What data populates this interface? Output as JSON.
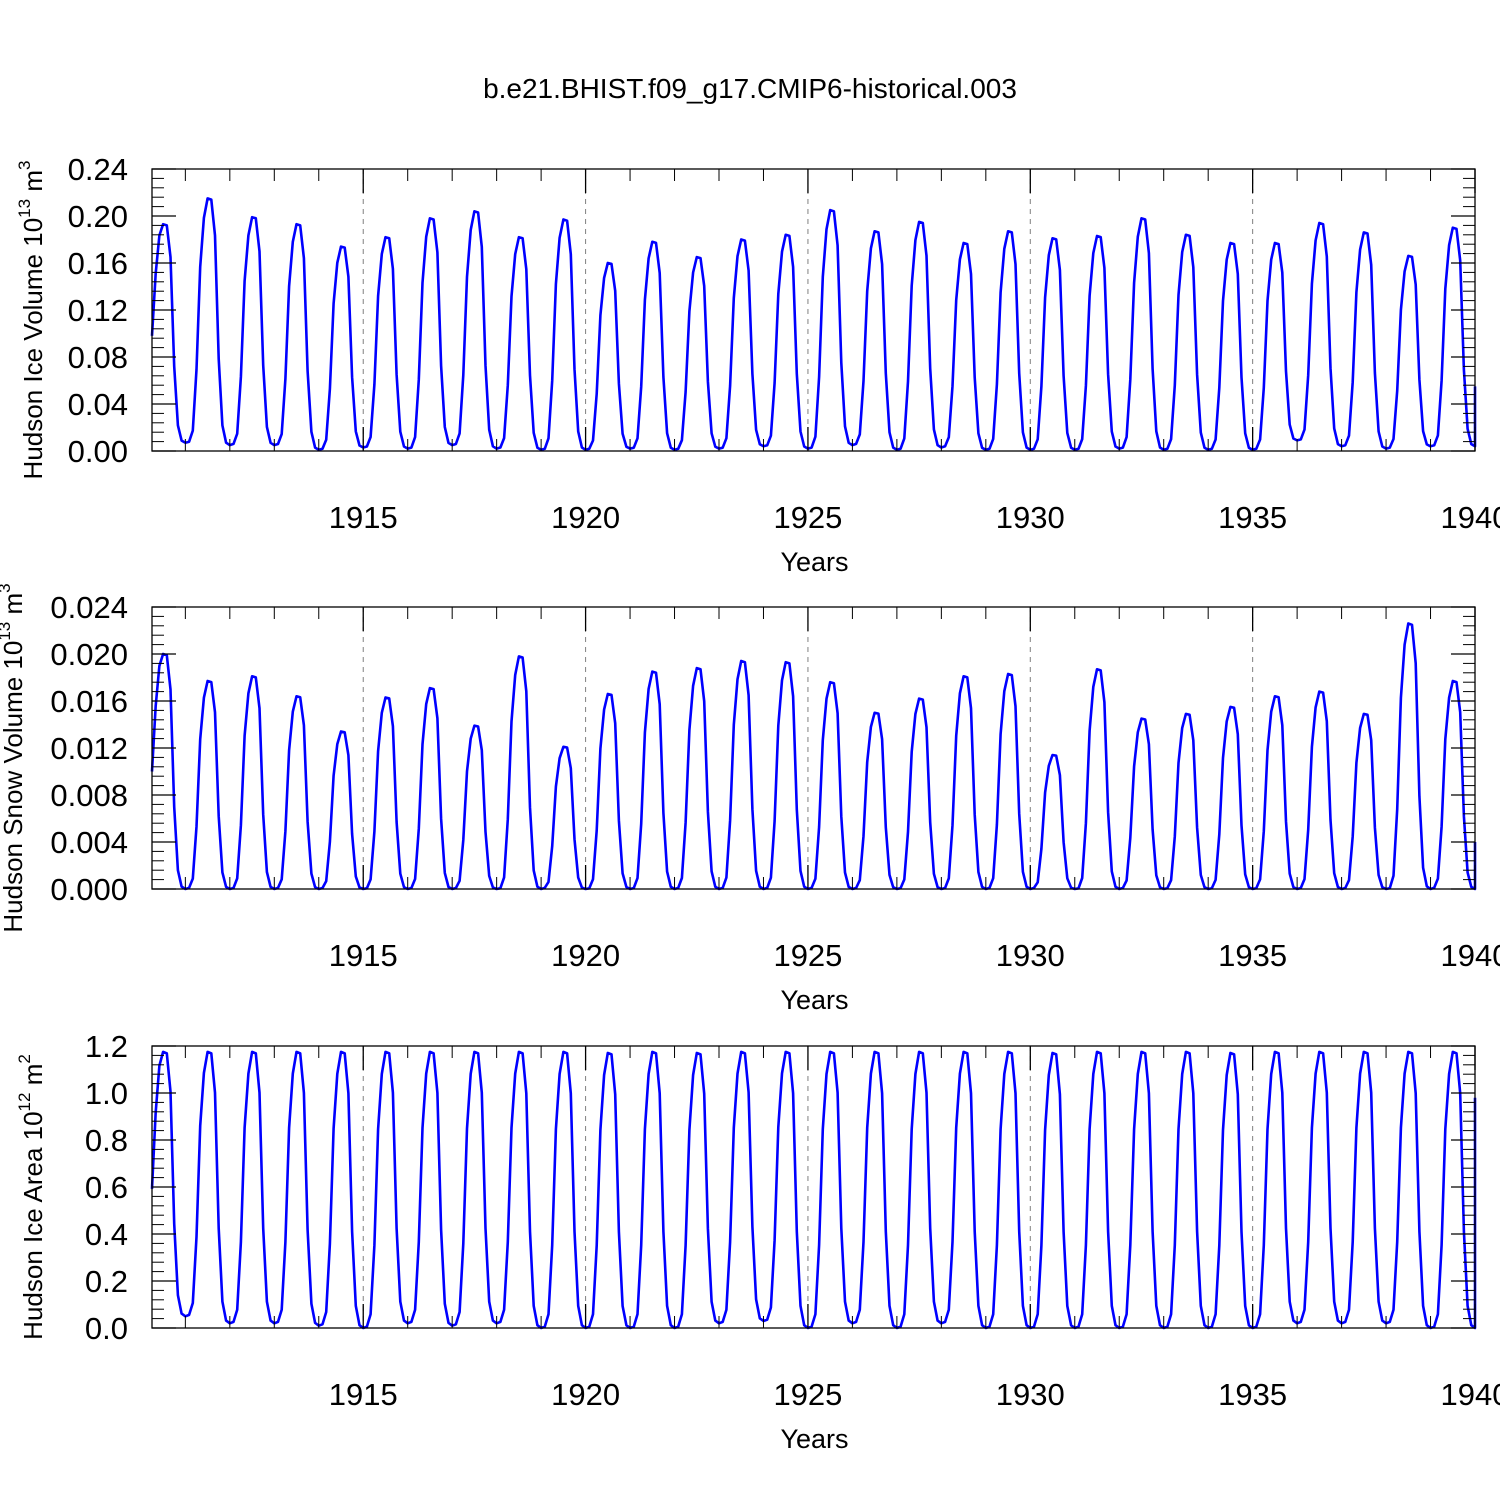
{
  "figure_title": "b.e21.BHIST.f09_g17.CMIP6-historical.003",
  "chart_data": [
    {
      "type": "line",
      "id": "ice-volume",
      "ylabel": "Hudson Ice Volume 10",
      "ylabel_sup": "13",
      "ylabel_unit": " m",
      "ylabel_unit_sup": "3",
      "xlabel": "Years",
      "xlim": [
        1910.25,
        1940.0
      ],
      "ylim": [
        0.0,
        0.24
      ],
      "yticks": [
        "0.00",
        "0.04",
        "0.08",
        "0.12",
        "0.16",
        "0.20",
        "0.24"
      ],
      "xticks": [
        "1915",
        "1920",
        "1925",
        "1930",
        "1935",
        "1940"
      ],
      "grid": "vertical dashed at major x ticks",
      "color": "#0000ff",
      "x_start": 1910.25,
      "x_step": 0.083333,
      "seasonal_maxima": [
        0.193,
        0.215,
        0.199,
        0.193,
        0.174,
        0.182,
        0.198,
        0.204,
        0.182,
        0.197,
        0.16,
        0.178,
        0.165,
        0.18,
        0.184,
        0.205,
        0.187,
        0.195,
        0.177,
        0.187,
        0.181,
        0.183,
        0.198,
        0.184,
        0.177,
        0.177,
        0.194,
        0.186,
        0.166,
        0.19
      ],
      "seasonal_minima": [
        0.003,
        0.007,
        0.005,
        0.005,
        0.001,
        0.003,
        0.002,
        0.005,
        0.002,
        0.001,
        0.001,
        0.002,
        0.001,
        0.002,
        0.004,
        0.002,
        0.005,
        0.001,
        0.003,
        0.001,
        0.001,
        0.001,
        0.002,
        0.001,
        0.001,
        0.001,
        0.009,
        0.004,
        0.002,
        0.004
      ],
      "end_value": 0.055
    },
    {
      "type": "line",
      "id": "snow-volume",
      "ylabel": "Hudson Snow Volume 10",
      "ylabel_sup": "13",
      "ylabel_unit": " m",
      "ylabel_unit_sup": "3",
      "xlabel": "Years",
      "xlim": [
        1910.25,
        1940.0
      ],
      "ylim": [
        0.0,
        0.024
      ],
      "yticks": [
        "0.000",
        "0.004",
        "0.008",
        "0.012",
        "0.016",
        "0.020",
        "0.024"
      ],
      "xticks": [
        "1915",
        "1920",
        "1925",
        "1930",
        "1935",
        "1940"
      ],
      "grid": "vertical dashed at major x ticks",
      "color": "#0000ff",
      "x_start": 1910.25,
      "x_step": 0.083333,
      "seasonal_maxima": [
        0.02,
        0.0177,
        0.0181,
        0.0164,
        0.0134,
        0.0163,
        0.0171,
        0.0139,
        0.0198,
        0.0121,
        0.0166,
        0.0185,
        0.0188,
        0.0194,
        0.0193,
        0.0176,
        0.015,
        0.0162,
        0.0181,
        0.0183,
        0.0114,
        0.0187,
        0.0145,
        0.0149,
        0.0155,
        0.0164,
        0.0168,
        0.0149,
        0.0226,
        0.0177
      ],
      "seasonal_minima": [
        0.0,
        0.0,
        0.0,
        0.0,
        0.0,
        0.0,
        0.0,
        0.0,
        0.0,
        0.0,
        0.0,
        0.0,
        0.0,
        0.0,
        0.0,
        0.0,
        0.0,
        0.0,
        0.0,
        0.0,
        0.0,
        0.0,
        0.0,
        0.0,
        0.0,
        0.0,
        0.0,
        0.0,
        0.0,
        0.0
      ],
      "end_value": 0.004
    },
    {
      "type": "line",
      "id": "ice-area",
      "ylabel": "Hudson Ice Area 10",
      "ylabel_sup": "12",
      "ylabel_unit": " m",
      "ylabel_unit_sup": "2",
      "xlabel": "Years",
      "xlim": [
        1910.25,
        1940.0
      ],
      "ylim": [
        0.0,
        1.2
      ],
      "yticks": [
        "0.0",
        "0.2",
        "0.4",
        "0.6",
        "0.8",
        "1.0",
        "1.2"
      ],
      "xticks": [
        "1915",
        "1920",
        "1925",
        "1930",
        "1935",
        "1940"
      ],
      "grid": "vertical dashed at major x ticks",
      "color": "#0000ff",
      "x_start": 1910.25,
      "x_step": 0.083333,
      "seasonal_maxima": [
        1.175,
        1.175,
        1.175,
        1.175,
        1.175,
        1.175,
        1.175,
        1.175,
        1.175,
        1.175,
        1.17,
        1.175,
        1.17,
        1.175,
        1.175,
        1.175,
        1.175,
        1.175,
        1.175,
        1.175,
        1.17,
        1.175,
        1.175,
        1.175,
        1.17,
        1.175,
        1.175,
        1.175,
        1.175,
        1.175
      ],
      "seasonal_minima": [
        0.01,
        0.05,
        0.02,
        0.02,
        0.01,
        0.0,
        0.02,
        0.01,
        0.02,
        0.0,
        0.0,
        0.0,
        0.0,
        0.02,
        0.03,
        0.0,
        0.02,
        0.0,
        0.02,
        0.0,
        0.0,
        0.0,
        0.0,
        0.0,
        0.0,
        0.0,
        0.02,
        0.02,
        0.02,
        0.0
      ],
      "end_value": 0.98
    }
  ]
}
